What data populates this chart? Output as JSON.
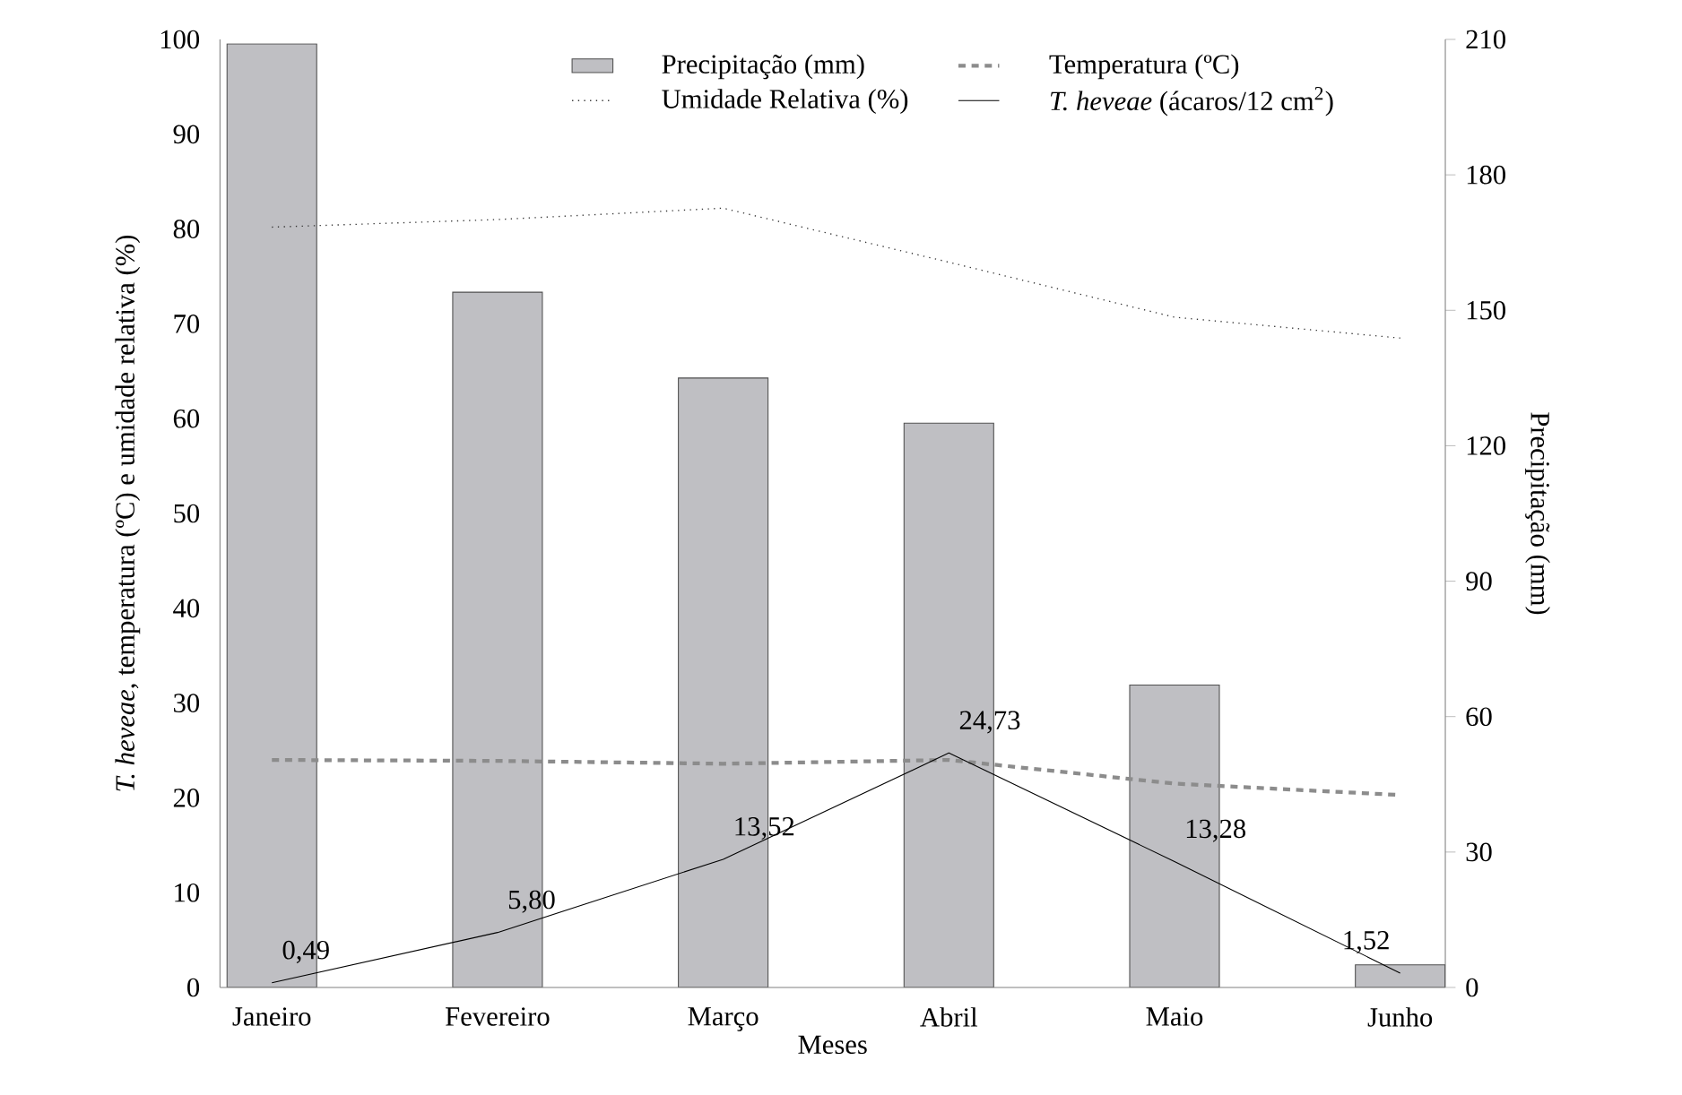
{
  "chart_data": {
    "type": "bar",
    "xlabel": "Meses",
    "ylabel": "*T. heveae*, temperatura (ºC)  e umidade relativa (%)",
    "y2label": "Precipitação (mm)",
    "categories": [
      "Janeiro",
      "Fevereiro",
      "Março",
      "Abril",
      "Maio",
      "Junho"
    ],
    "series": [
      {
        "name": "Precipitação (mm)",
        "axis": "y2",
        "color": "#bfbfc3",
        "values": [
          209,
          154,
          135,
          125,
          67,
          5
        ]
      },
      {
        "name": "Temperatura (ºC)",
        "type": "line",
        "line_style": "dashed",
        "color": "#8c8c8c",
        "values": [
          24.0,
          23.9,
          23.6,
          24.0,
          21.5,
          20.3
        ]
      },
      {
        "name": "Umidade Relativa (%)",
        "type": "line",
        "line_style": "dotted",
        "color": "#333333",
        "values": [
          80.2,
          81.0,
          82.2,
          76.5,
          70.7,
          68.5
        ]
      },
      {
        "name": "*T. heveae* (ácaros/12 cm$^{2}$)",
        "type": "line",
        "line_style": "solid",
        "color": "#000000",
        "values": [
          0.49,
          5.8,
          13.52,
          24.73,
          13.28,
          1.52
        ],
        "value_labels": [
          "0,49",
          "5,80",
          "13,52",
          "24,73",
          "13,28",
          "1,52"
        ]
      }
    ],
    "ylim": [
      0,
      100
    ],
    "yticks": [
      0,
      10,
      20,
      30,
      40,
      50,
      60,
      70,
      80,
      90,
      100
    ],
    "y2lim": [
      0,
      210
    ],
    "y2ticks": [
      0,
      30,
      60,
      90,
      120,
      150,
      180,
      210
    ],
    "legend": "top"
  }
}
